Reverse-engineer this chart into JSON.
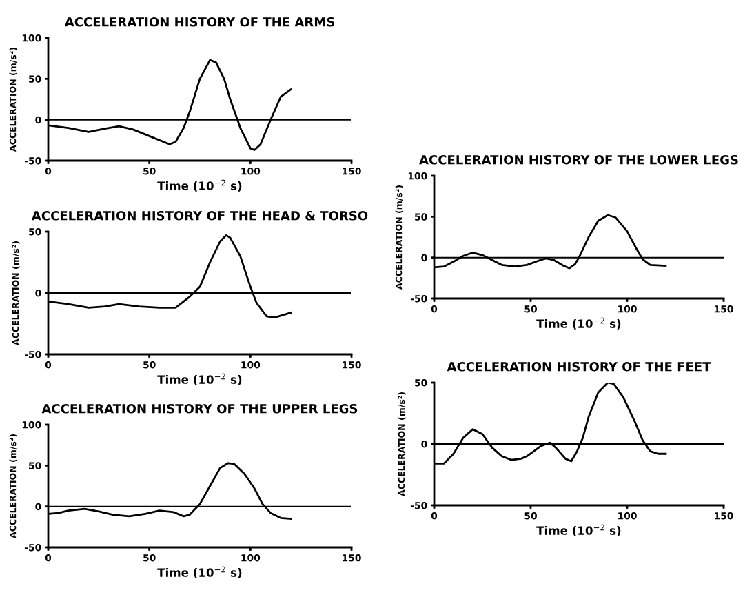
{
  "chart_data": [
    {
      "type": "line",
      "title": "ACCELERATION HISTORY OF THE ARMS",
      "xlabel": "Time (10$^{−2}$ s)",
      "ylabel": "ACCELERATION (m/s²)",
      "xlim": [
        0,
        150
      ],
      "xticks": [
        0,
        50,
        100,
        150
      ],
      "ylim": [
        -50,
        100
      ],
      "yticks": [
        -50,
        0,
        50,
        100
      ],
      "ref_lines": [
        {
          "axis": "y",
          "value": 0
        }
      ],
      "series": [
        {
          "color": "#000000",
          "x": [
            0,
            10,
            20,
            28,
            35,
            42,
            50,
            60,
            63,
            67,
            70,
            75,
            80,
            83,
            87,
            90,
            95,
            100,
            102,
            105,
            110,
            115,
            120
          ],
          "values": [
            -7,
            -10,
            -15,
            -11,
            -8,
            -12,
            -20,
            -30,
            -27,
            -10,
            10,
            50,
            73,
            70,
            50,
            25,
            -10,
            -35,
            -37,
            -30,
            0,
            28,
            37
          ]
        }
      ]
    },
    {
      "type": "line",
      "title": "ACCELERATION HISTORY OF THE HEAD & TORSO",
      "xlabel": "Time (10$^{−2}$ s)",
      "ylabel": "ACCELERATION (m/s²)",
      "xlim": [
        0,
        150
      ],
      "xticks": [
        0,
        50,
        100,
        150
      ],
      "ylim": [
        -50,
        50
      ],
      "yticks": [
        -50,
        0,
        50
      ],
      "ref_lines": [
        {
          "axis": "y",
          "value": 0
        }
      ],
      "series": [
        {
          "color": "#000000",
          "x": [
            0,
            10,
            20,
            28,
            35,
            45,
            55,
            63,
            70,
            75,
            80,
            85,
            88,
            90,
            95,
            100,
            103,
            108,
            112,
            120
          ],
          "values": [
            -7,
            -9,
            -12,
            -11,
            -9,
            -11,
            -12,
            -12,
            -3,
            5,
            25,
            42,
            47,
            45,
            30,
            5,
            -8,
            -19,
            -20,
            -16
          ]
        }
      ]
    },
    {
      "type": "line",
      "title": "ACCELERATION HISTORY OF THE UPPER LEGS",
      "xlabel": "Time (10$^{−2}$ s)",
      "ylabel": "ACCELERATION (m/s²)",
      "xlim": [
        0,
        150
      ],
      "xticks": [
        0,
        50,
        100,
        150
      ],
      "ylim": [
        -50,
        100
      ],
      "yticks": [
        -50,
        0,
        50,
        100
      ],
      "ref_lines": [
        {
          "axis": "y",
          "value": 0
        }
      ],
      "series": [
        {
          "color": "#000000",
          "x": [
            0,
            5,
            10,
            18,
            25,
            32,
            40,
            48,
            55,
            62,
            67,
            70,
            75,
            80,
            85,
            89,
            92,
            97,
            102,
            106,
            110,
            115,
            120
          ],
          "values": [
            -9,
            -8,
            -5,
            -3,
            -6,
            -10,
            -12,
            -9,
            -5,
            -7,
            -12,
            -10,
            3,
            25,
            47,
            53,
            52,
            40,
            22,
            3,
            -8,
            -14,
            -15
          ]
        }
      ]
    },
    {
      "type": "line",
      "title": "ACCELERATION HISTORY OF THE LOWER LEGS",
      "xlabel": "Time (10$^{−2}$ s)",
      "ylabel": "ACCELERATION (m/s²)",
      "xlim": [
        0,
        150
      ],
      "xticks": [
        0,
        50,
        100,
        150
      ],
      "ylim": [
        -50,
        100
      ],
      "yticks": [
        -50,
        0,
        50,
        100
      ],
      "ref_lines": [
        {
          "axis": "y",
          "value": 0
        }
      ],
      "series": [
        {
          "color": "#000000",
          "x": [
            0,
            5,
            10,
            15,
            20,
            25,
            30,
            35,
            42,
            48,
            55,
            58,
            62,
            67,
            70,
            73,
            75,
            80,
            85,
            90,
            94,
            100,
            105,
            108,
            112,
            120
          ],
          "values": [
            -12,
            -11,
            -5,
            2,
            6,
            3,
            -3,
            -9,
            -11,
            -9,
            -3,
            -1,
            -3,
            -10,
            -13,
            -8,
            0,
            25,
            45,
            52,
            49,
            32,
            10,
            -2,
            -9,
            -10
          ]
        }
      ]
    },
    {
      "type": "line",
      "title": "ACCELERATION HISTORY OF THE FEET",
      "xlabel": "Time (10$^{−2}$ s)",
      "ylabel": "ACCELERATION (m/s²)",
      "xlim": [
        0,
        150
      ],
      "xticks": [
        0,
        50,
        100,
        150
      ],
      "ylim": [
        -50,
        50
      ],
      "yticks": [
        -50,
        0,
        50
      ],
      "ref_lines": [
        {
          "axis": "y",
          "value": 0
        }
      ],
      "series": [
        {
          "color": "#000000",
          "x": [
            0,
            5,
            10,
            15,
            20,
            25,
            30,
            35,
            40,
            45,
            48,
            55,
            58,
            60,
            63,
            68,
            71,
            74,
            77,
            80,
            85,
            90,
            93,
            98,
            104,
            108,
            112,
            116,
            120
          ],
          "values": [
            -16,
            -16,
            -8,
            5,
            12,
            8,
            -3,
            -10,
            -13,
            -12,
            -10,
            -2,
            0,
            1,
            -3,
            -12,
            -14,
            -6,
            5,
            22,
            42,
            50,
            49,
            38,
            18,
            3,
            -6,
            -8,
            -8
          ]
        }
      ]
    }
  ]
}
